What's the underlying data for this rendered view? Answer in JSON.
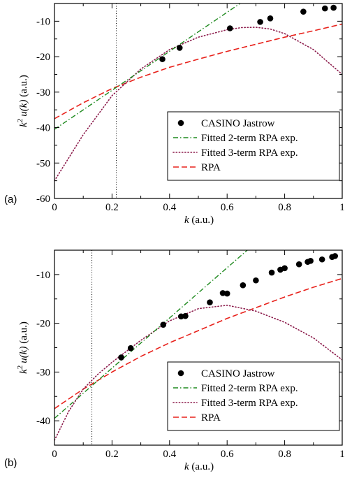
{
  "colors": {
    "jastrow": "#000000",
    "fit2": "#1f8a1f",
    "fit3": "#8b1a4a",
    "rpa": "#e8221c",
    "kc_line": "#000000"
  },
  "chart_data": [
    {
      "type": "scatter",
      "panel_label": "(a)",
      "xlabel_var": "k",
      "xlabel_unit": " (a.u.)",
      "ylabel_pre": "k",
      "ylabel_sup": "2",
      "ylabel_fn": "u(k)",
      "ylabel_unit": " (a.u.)",
      "xlim": [
        0,
        1
      ],
      "ylim": [
        -60,
        -5
      ],
      "xticks": [
        0,
        0.2,
        0.4,
        0.6,
        0.8,
        1
      ],
      "xtick_labels": [
        "0",
        "0.2",
        "0.4",
        "0.6",
        "0.8",
        "1"
      ],
      "yticks": [
        -60,
        -50,
        -40,
        -30,
        -20,
        -10
      ],
      "ytick_labels": [
        "-60",
        "-50",
        "-40",
        "-30",
        "-20",
        "-10"
      ],
      "vline_x": 0.215,
      "legend_position": "bottom-right",
      "legend": [
        {
          "label": "CASINO Jastrow",
          "style": "dot"
        },
        {
          "label": "Fitted 2-term RPA exp.",
          "style": "dashdot"
        },
        {
          "label": "Fitted 3-term RPA exp.",
          "style": "dotted"
        },
        {
          "label": "RPA",
          "style": "dashed"
        }
      ],
      "jastrow_points": {
        "x": [
          0.375,
          0.435,
          0.61,
          0.715,
          0.75,
          0.865,
          0.94,
          0.97
        ],
        "y": [
          -20.7,
          -17.5,
          -12.0,
          -10.2,
          -9.2,
          -7.3,
          -6.4,
          -6.2
        ]
      },
      "fit2": {
        "x": [
          0.0,
          0.645
        ],
        "y": [
          -40.5,
          -5.0
        ]
      },
      "fit3": {
        "x": [
          0.0,
          0.1,
          0.2,
          0.3,
          0.4,
          0.5,
          0.6,
          0.65,
          0.7,
          0.75,
          0.8,
          0.9,
          1.0
        ],
        "y": [
          -55.0,
          -42.0,
          -31.0,
          -23.5,
          -18.0,
          -14.5,
          -12.4,
          -11.8,
          -11.7,
          -12.2,
          -13.5,
          -18.0,
          -25.0
        ]
      },
      "rpa": {
        "x": [
          0.0,
          0.1,
          0.2,
          0.3,
          0.4,
          0.5,
          0.6,
          0.7,
          0.8,
          0.9,
          1.0
        ],
        "y": [
          -37.5,
          -33.0,
          -29.0,
          -25.8,
          -23.0,
          -20.7,
          -18.5,
          -16.5,
          -14.5,
          -12.7,
          -10.8
        ]
      }
    },
    {
      "type": "scatter",
      "panel_label": "(b)",
      "xlabel_var": "k",
      "xlabel_unit": " (a.u.)",
      "ylabel_pre": "k",
      "ylabel_sup": "2",
      "ylabel_fn": "u(k)",
      "ylabel_unit": " (a.u.)",
      "xlim": [
        0,
        1
      ],
      "ylim": [
        -45,
        -5
      ],
      "xticks": [
        0,
        0.2,
        0.4,
        0.6,
        0.8,
        1
      ],
      "xtick_labels": [
        "0",
        "0.2",
        "0.4",
        "0.6",
        "0.8",
        "1"
      ],
      "yticks": [
        -40,
        -30,
        -20,
        -10
      ],
      "ytick_labels": [
        "-40",
        "-30",
        "-20",
        "-10"
      ],
      "vline_x": 0.13,
      "legend_position": "bottom-right",
      "legend": [
        {
          "label": "CASINO Jastrow",
          "style": "dot"
        },
        {
          "label": "Fitted 2-term RPA exp.",
          "style": "dashdot"
        },
        {
          "label": "Fitted 3-term RPA exp.",
          "style": "dotted"
        },
        {
          "label": "RPA",
          "style": "dashed"
        }
      ],
      "jastrow_points": {
        "x": [
          0.232,
          0.265,
          0.378,
          0.44,
          0.455,
          0.54,
          0.585,
          0.6,
          0.655,
          0.7,
          0.755,
          0.785,
          0.8,
          0.85,
          0.88,
          0.89,
          0.93,
          0.965,
          0.975
        ],
        "y": [
          -27.0,
          -25.1,
          -20.3,
          -18.6,
          -18.5,
          -15.7,
          -13.8,
          -13.9,
          -12.2,
          -11.2,
          -9.6,
          -9.0,
          -8.7,
          -7.9,
          -7.4,
          -7.2,
          -6.9,
          -6.4,
          -6.2
        ]
      },
      "fit2": {
        "x": [
          0.0,
          0.67
        ],
        "y": [
          -39.5,
          -5.0
        ]
      },
      "fit3": {
        "x": [
          0.0,
          0.05,
          0.1,
          0.15,
          0.2,
          0.3,
          0.4,
          0.5,
          0.6,
          0.7,
          0.8,
          0.9,
          1.0
        ],
        "y": [
          -44.0,
          -38.0,
          -33.5,
          -30.5,
          -28.0,
          -23.5,
          -19.5,
          -17.0,
          -16.3,
          -17.5,
          -19.8,
          -23.0,
          -27.5
        ]
      },
      "rpa": {
        "x": [
          0.0,
          0.1,
          0.2,
          0.3,
          0.4,
          0.5,
          0.6,
          0.7,
          0.8,
          0.9,
          1.0
        ],
        "y": [
          -37.5,
          -33.5,
          -30.0,
          -26.8,
          -24.0,
          -21.5,
          -19.0,
          -16.8,
          -14.6,
          -12.6,
          -10.8
        ]
      }
    }
  ]
}
